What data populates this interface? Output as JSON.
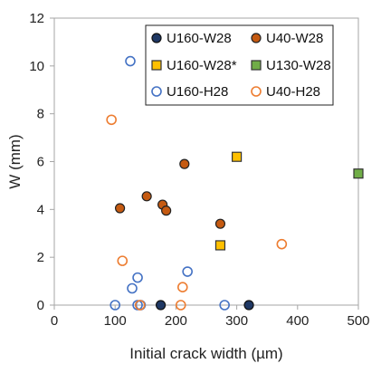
{
  "chart_data": {
    "type": "scatter",
    "xlabel": "Initial crack width (µm)",
    "ylabel": "W (mm)",
    "xlim": [
      0,
      500
    ],
    "ylim": [
      0,
      12
    ],
    "xticks": [
      "0",
      "100",
      "200",
      "300",
      "400",
      "500"
    ],
    "yticks": [
      "0",
      "2",
      "4",
      "6",
      "8",
      "10",
      "12"
    ],
    "grid": false,
    "legend_placement": "top-right",
    "series": [
      {
        "name": "U160-W28",
        "marker": "circle",
        "fill": "#1f3864",
        "stroke": "#111111",
        "points": [
          [
            175,
            0
          ],
          [
            320,
            0
          ]
        ]
      },
      {
        "name": "U40-W28",
        "marker": "circle",
        "fill": "#c55a11",
        "stroke": "#222222",
        "points": [
          [
            108,
            4.05
          ],
          [
            152,
            4.55
          ],
          [
            178,
            4.2
          ],
          [
            184,
            3.95
          ],
          [
            214,
            5.9
          ],
          [
            273,
            3.4
          ]
        ]
      },
      {
        "name": "U160-W28*",
        "marker": "square",
        "fill": "#ffc000",
        "stroke": "#333333",
        "points": [
          [
            300,
            6.2
          ],
          [
            273,
            2.5
          ]
        ]
      },
      {
        "name": "U130-W28",
        "marker": "square",
        "fill": "#70ad47",
        "stroke": "#333333",
        "points": [
          [
            500,
            5.5
          ]
        ]
      },
      {
        "name": "U160-H28",
        "marker": "circle",
        "fill": "none",
        "stroke": "#4472c4",
        "points": [
          [
            125,
            10.2
          ],
          [
            100,
            0
          ],
          [
            128,
            0.7
          ],
          [
            137,
            1.15
          ],
          [
            137,
            0
          ],
          [
            142,
            0
          ],
          [
            219,
            1.4
          ],
          [
            280,
            0
          ]
        ]
      },
      {
        "name": "U40-H28",
        "marker": "circle",
        "fill": "none",
        "stroke": "#ed7d31",
        "points": [
          [
            94,
            7.75
          ],
          [
            112,
            1.85
          ],
          [
            141,
            0
          ],
          [
            208,
            0
          ],
          [
            211,
            0.75
          ],
          [
            374,
            2.55
          ]
        ]
      }
    ]
  }
}
